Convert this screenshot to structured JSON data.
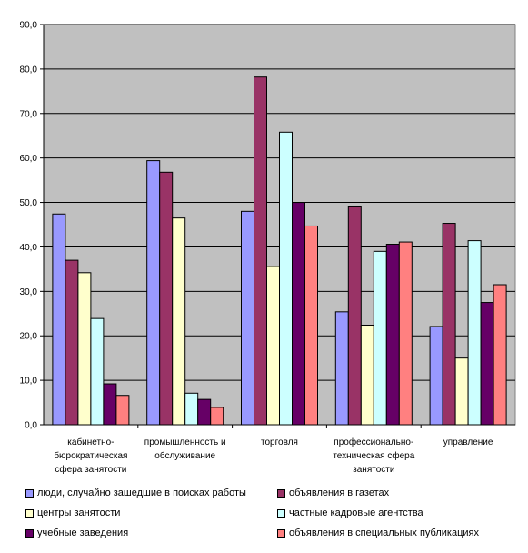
{
  "chart_data": {
    "type": "bar",
    "categories": [
      [
        "кабинетно-",
        "бюрократическая",
        "сфера занятости"
      ],
      [
        "промышленность и",
        "обслуживание"
      ],
      [
        "торговля"
      ],
      [
        "профессионально-",
        "техническая сфера",
        "занятости"
      ],
      [
        "управление"
      ]
    ],
    "series": [
      {
        "name": "люди, случайно зашедшие в поисках работы",
        "color": "#9999ff",
        "values": [
          47.4,
          59.4,
          48.0,
          25.4,
          22.1
        ]
      },
      {
        "name": "объявления в газетах",
        "color": "#993366",
        "values": [
          37.0,
          56.8,
          78.2,
          49.0,
          45.3
        ]
      },
      {
        "name": "центры занятости",
        "color": "#ffffcc",
        "values": [
          34.2,
          46.5,
          35.6,
          22.4,
          15.0
        ]
      },
      {
        "name": "частные кадровые агентства",
        "color": "#ccffff",
        "values": [
          23.9,
          7.1,
          65.8,
          39.0,
          41.4
        ]
      },
      {
        "name": "учебные заведения",
        "color": "#660066",
        "values": [
          9.2,
          5.7,
          50.0,
          40.6,
          27.5
        ]
      },
      {
        "name": "объявления в специальных публикациях",
        "color": "#ff8080",
        "values": [
          6.6,
          3.9,
          44.7,
          41.1,
          31.5
        ]
      }
    ],
    "ylim": [
      0,
      90
    ],
    "yticks": [
      "0,0",
      "10,0",
      "20,0",
      "30,0",
      "40,0",
      "50,0",
      "60,0",
      "70,0",
      "80,0",
      "90,0"
    ],
    "plot_background": "#c0c0c0",
    "grid": true,
    "legend_position": "bottom"
  }
}
